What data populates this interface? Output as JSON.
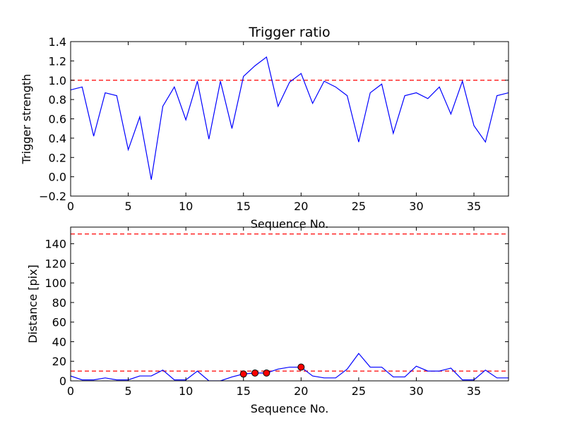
{
  "chart_data": [
    {
      "type": "line",
      "title": "Trigger ratio",
      "xlabel": "Sequence No.",
      "ylabel": "Trigger strength",
      "xlim": [
        0,
        38
      ],
      "ylim": [
        -0.2,
        1.4
      ],
      "xticks": [
        0,
        5,
        10,
        15,
        20,
        25,
        30,
        35
      ],
      "yticks": [
        -0.2,
        0.0,
        0.2,
        0.4,
        0.6,
        0.8,
        1.0,
        1.2,
        1.4
      ],
      "ytick_labels": [
        "−0.2",
        "0.0",
        "0.2",
        "0.4",
        "0.6",
        "0.8",
        "1.0",
        "1.2",
        "1.4"
      ],
      "grid": false,
      "series": [
        {
          "name": "trigger strength",
          "color": "#0000ff",
          "x": [
            0,
            1,
            2,
            3,
            4,
            5,
            6,
            7,
            8,
            9,
            10,
            11,
            12,
            13,
            14,
            15,
            16,
            17,
            18,
            19,
            20,
            21,
            22,
            23,
            24,
            25,
            26,
            27,
            28,
            29,
            30,
            31,
            32,
            33,
            34,
            35,
            36,
            37,
            38
          ],
          "y": [
            0.9,
            0.93,
            0.42,
            0.87,
            0.84,
            0.28,
            0.62,
            -0.03,
            0.73,
            0.93,
            0.59,
            0.99,
            0.39,
            0.99,
            0.5,
            1.04,
            1.15,
            1.24,
            0.73,
            0.98,
            1.07,
            0.76,
            0.99,
            0.93,
            0.84,
            0.36,
            0.87,
            0.96,
            0.45,
            0.84,
            0.87,
            0.81,
            0.93,
            0.65,
            0.99,
            0.53,
            0.36,
            0.84,
            0.87
          ]
        }
      ],
      "threshold": {
        "value": 1.0,
        "color": "#ff0000",
        "style": "dashed"
      }
    },
    {
      "type": "line",
      "title": "",
      "xlabel": "Sequence No.",
      "ylabel": "Distance [pix]",
      "xlim": [
        0,
        38
      ],
      "ylim": [
        0,
        157
      ],
      "xticks": [
        0,
        5,
        10,
        15,
        20,
        25,
        30,
        35
      ],
      "yticks": [
        0,
        20,
        40,
        60,
        80,
        100,
        120,
        140
      ],
      "ytick_labels": [
        "0",
        "20",
        "40",
        "60",
        "80",
        "100",
        "120",
        "140"
      ],
      "grid": false,
      "series": [
        {
          "name": "distance",
          "color": "#0000ff",
          "x": [
            0,
            1,
            2,
            3,
            4,
            5,
            6,
            7,
            8,
            9,
            10,
            11,
            12,
            13,
            14,
            15,
            16,
            17,
            18,
            19,
            20,
            21,
            22,
            23,
            24,
            25,
            26,
            27,
            28,
            29,
            30,
            31,
            32,
            33,
            34,
            35,
            36,
            37,
            38
          ],
          "y": [
            5,
            1,
            1,
            3,
            1,
            1,
            5,
            5,
            11,
            1,
            1,
            10,
            0,
            0,
            4,
            7,
            8,
            8,
            12,
            14,
            14,
            5,
            3,
            3,
            12,
            28,
            14,
            14,
            4,
            4,
            15,
            10,
            10,
            13,
            1,
            1,
            11,
            3,
            3
          ]
        }
      ],
      "markers": {
        "color": "#ff0000",
        "x": [
          15,
          16,
          17,
          20
        ],
        "y": [
          7,
          8,
          8,
          14
        ]
      },
      "thresholds": [
        {
          "value": 150,
          "color": "#ff0000",
          "style": "dashed"
        },
        {
          "value": 10,
          "color": "#ff0000",
          "style": "dashed"
        }
      ]
    }
  ]
}
